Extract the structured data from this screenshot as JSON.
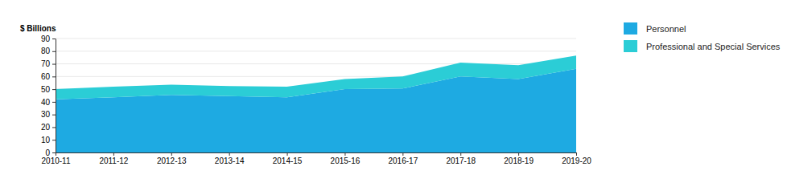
{
  "chart_data": {
    "type": "area",
    "stacked": true,
    "grid": true,
    "legend": "right",
    "y_label": "$ Billions",
    "categories": [
      "2010-11",
      "2011-12",
      "2012-13",
      "2013-14",
      "2014-15",
      "2015-16",
      "2016-17",
      "2017-18",
      "2018-19",
      "2019-20"
    ],
    "series": [
      {
        "name": "Personnel",
        "color": "#1eaae2",
        "values": [
          42,
          43.5,
          45.5,
          44.5,
          43.5,
          50,
          50.5,
          60,
          58,
          66
        ]
      },
      {
        "name": "Professional and Special Services",
        "color": "#2bcdd6",
        "values": [
          8,
          8.5,
          8,
          8,
          8.5,
          8,
          9.5,
          11,
          11,
          10.5
        ]
      }
    ],
    "ylim": [
      0,
      90
    ],
    "yticks": [
      0,
      10,
      20,
      30,
      40,
      50,
      60,
      70,
      80,
      90
    ]
  }
}
